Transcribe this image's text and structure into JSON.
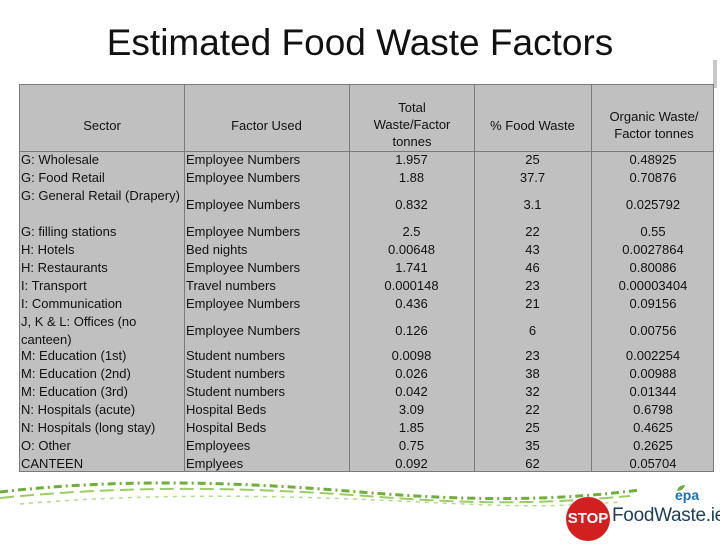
{
  "title": "Estimated Food Waste Factors",
  "headers": {
    "sector": "Sector",
    "factor": "Factor Used",
    "total": "Total Waste/Factor tonnes",
    "pct": "% Food Waste",
    "organic": "Organic Waste/ Factor tonnes"
  },
  "rows": [
    {
      "sector": "G: Wholesale",
      "factor": "Employee Numbers",
      "total": "1.957",
      "pct": "25",
      "organic": "0.48925"
    },
    {
      "sector": "G: Food Retail",
      "factor": "Employee Numbers",
      "total": "1.88",
      "pct": "37.7",
      "organic": "0.70876"
    },
    {
      "sector": "G: General Retail (Drapery)",
      "factor": "Employee Numbers",
      "total": "0.832",
      "pct": "3.1",
      "organic": "0.025792"
    },
    {
      "sector": "G: filling stations",
      "factor": "Employee Numbers",
      "total": "2.5",
      "pct": "22",
      "organic": "0.55"
    },
    {
      "sector": "H: Hotels",
      "factor": "Bed nights",
      "total": "0.00648",
      "pct": "43",
      "organic": "0.0027864"
    },
    {
      "sector": "H: Restaurants",
      "factor": "Employee Numbers",
      "total": "1.741",
      "pct": "46",
      "organic": "0.80086"
    },
    {
      "sector": "I: Transport",
      "factor": "Travel numbers",
      "total": "0.000148",
      "pct": "23",
      "organic": "0.00003404"
    },
    {
      "sector": "I: Communication",
      "factor": "Employee Numbers",
      "total": "0.436",
      "pct": "21",
      "organic": "0.09156"
    },
    {
      "sector": "J, K & L: Offices (no canteen)",
      "factor": "Employee Numbers",
      "total": "0.126",
      "pct": "6",
      "organic": "0.00756"
    },
    {
      "sector": "M: Education (1st)",
      "factor": "Student numbers",
      "total": "0.0098",
      "pct": "23",
      "organic": "0.002254"
    },
    {
      "sector": "M: Education (2nd)",
      "factor": "Student numbers",
      "total": "0.026",
      "pct": "38",
      "organic": "0.00988"
    },
    {
      "sector": "M: Education (3rd)",
      "factor": "Student numbers",
      "total": "0.042",
      "pct": "32",
      "organic": "0.01344"
    },
    {
      "sector": "N: Hospitals (acute)",
      "factor": "Hospital Beds",
      "total": "3.09",
      "pct": "22",
      "organic": "0.6798"
    },
    {
      "sector": "N: Hospitals (long stay)",
      "factor": "Hospital Beds",
      "total": "1.85",
      "pct": "25",
      "organic": "0.4625"
    },
    {
      "sector": "O: Other",
      "factor": "Employees",
      "total": "0.75",
      "pct": "35",
      "organic": "0.2625"
    },
    {
      "sector": "CANTEEN",
      "factor": "Emplyees",
      "total": "0.092",
      "pct": "62",
      "organic": "0.05704"
    }
  ],
  "footer": {
    "logo_stop": "STOP",
    "logo_rest": "FoodWaste.ie",
    "epa": "epa",
    "accent_red": "#d22020",
    "accent_navy": "#1e3c5a",
    "accent_blue": "#1e70b4"
  }
}
